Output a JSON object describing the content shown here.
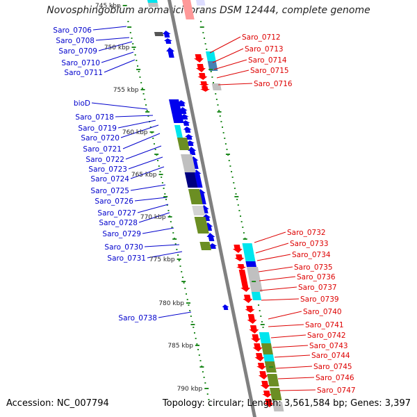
{
  "title": "Novosphingobium aromaticivorans DSM 12444, complete genome",
  "footer": {
    "accession": "Accession: NC_007794",
    "topology": "Topology: circular; Length: 3,561,584 bp; Genes: 3,397"
  },
  "colors": {
    "left_label": "#0000cc",
    "right_label": "#dd0000",
    "fwd_cds": "#0000ee",
    "rev_cds": "#ff0000",
    "cog_cyan": "#00e5ee",
    "cog_olive": "#6b8e23",
    "cog_grey": "#c0c0c0",
    "cog_navy": "#000080",
    "cog_steel": "#4682b4",
    "tick": "#228b22",
    "backbone": "#808080"
  },
  "kbp_labels": [
    "745 kbp",
    "750 kbp",
    "755 kbp",
    "760 kbp",
    "765 kbp",
    "770 kbp",
    "775 kbp",
    "780 kbp",
    "785 kbp",
    "790 kbp"
  ],
  "left_genes": [
    "Saro_0706",
    "Saro_0708",
    "Saro_0709",
    "Saro_0710",
    "Saro_0711",
    "bioD",
    "Saro_0718",
    "Saro_0719",
    "Saro_0720",
    "Saro_0721",
    "Saro_0722",
    "Saro_0723",
    "Saro_0724",
    "Saro_0725",
    "Saro_0726",
    "Saro_0727",
    "Saro_0728",
    "Saro_0729",
    "Saro_0730",
    "Saro_0731",
    "Saro_0738"
  ],
  "right_genes": [
    "Saro_0712",
    "Saro_0713",
    "Saro_0714",
    "Saro_0715",
    "Saro_0716",
    "Saro_0732",
    "Saro_0733",
    "Saro_0734",
    "Saro_0735",
    "Saro_0736",
    "Saro_0737",
    "Saro_0739",
    "Saro_0740",
    "Saro_0741",
    "Saro_0742",
    "Saro_0743",
    "Saro_0744",
    "Saro_0745",
    "Saro_0746",
    "Saro_0747"
  ]
}
